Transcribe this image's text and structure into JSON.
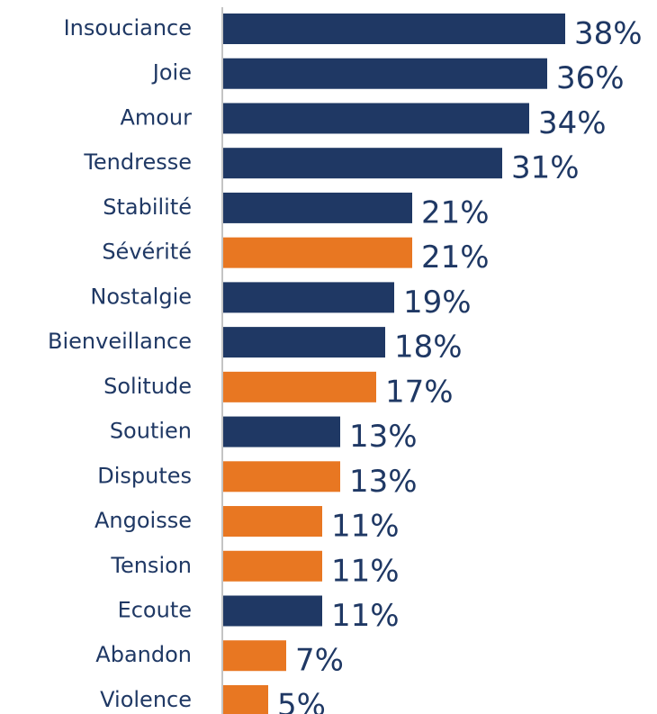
{
  "chart_data": {
    "type": "bar",
    "orientation": "horizontal",
    "categories": [
      "Insouciance",
      "Joie",
      "Amour",
      "Tendresse",
      "Stabilité",
      "Sévérité",
      "Nostalgie",
      "Bienveillance",
      "Solitude",
      "Soutien",
      "Disputes",
      "Angoisse",
      "Tension",
      "Ecoute",
      "Abandon",
      "Violence"
    ],
    "values": [
      38,
      36,
      34,
      31,
      21,
      21,
      19,
      18,
      17,
      13,
      13,
      11,
      11,
      11,
      7,
      5
    ],
    "value_labels": [
      "38%",
      "36%",
      "34%",
      "31%",
      "21%",
      "21%",
      "19%",
      "18%",
      "17%",
      "13%",
      "13%",
      "11%",
      "11%",
      "11%",
      "7%",
      "5%"
    ],
    "colors": [
      "#1f3864",
      "#1f3864",
      "#1f3864",
      "#1f3864",
      "#1f3864",
      "#e87722",
      "#1f3864",
      "#1f3864",
      "#e87722",
      "#1f3864",
      "#e87722",
      "#e87722",
      "#e87722",
      "#1f3864",
      "#e87722",
      "#e87722"
    ]
  }
}
